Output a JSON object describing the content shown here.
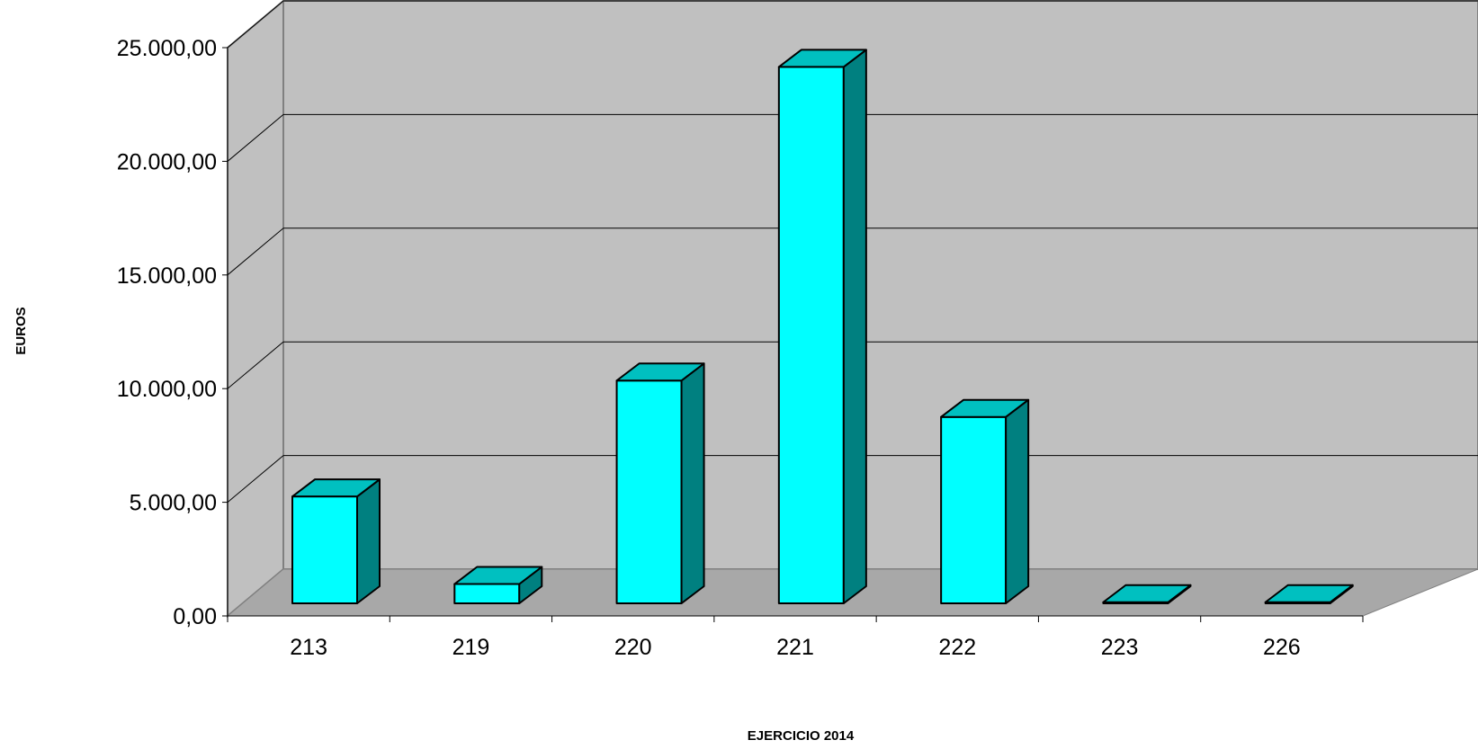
{
  "chart_data": {
    "type": "bar",
    "title": "",
    "xlabel": "EJERCICIO 2014",
    "ylabel": "EUROS",
    "categories": [
      "213",
      "219",
      "220",
      "221",
      "222",
      "223",
      "226"
    ],
    "values": [
      4700,
      850,
      9800,
      23600,
      8200,
      50,
      50
    ],
    "ylim": [
      0,
      25000
    ],
    "yticks": [
      0,
      5000,
      10000,
      15000,
      20000,
      25000
    ],
    "ytick_labels": [
      "0,00",
      "5.000,00",
      "10.000,00",
      "15.000,00",
      "20.000,00",
      "25.000,00"
    ],
    "grid": true,
    "legend": "none",
    "three_d": true,
    "colors": {
      "bar_front": "#00ffff",
      "bar_top": "#00c0c0",
      "bar_side": "#008080",
      "wall": "#c0c0c0",
      "floor": "#a8a8a8",
      "gridline": "#000000"
    }
  }
}
